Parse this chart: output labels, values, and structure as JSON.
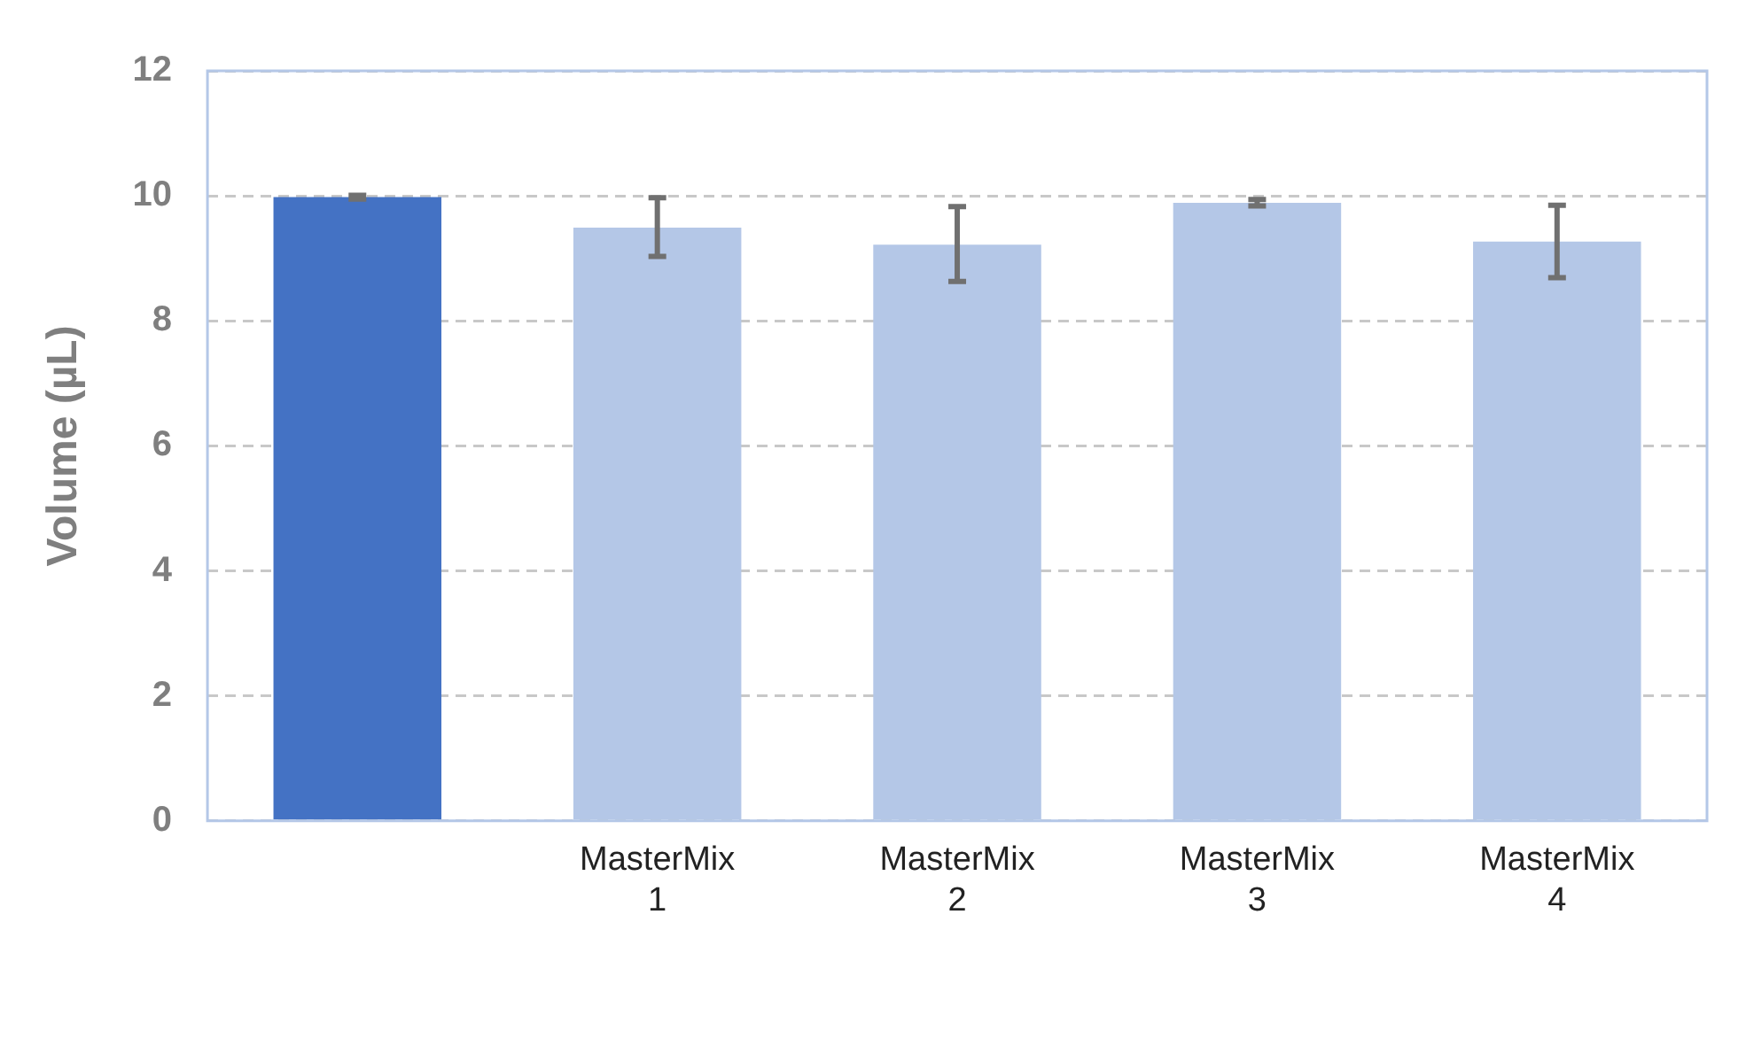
{
  "chart_data": {
    "type": "bar",
    "ylabel": "Volume (µL)",
    "categories": [
      null,
      "MasterMix 1",
      "MasterMix 2",
      "MasterMix 3",
      "MasterMix 4"
    ],
    "values": [
      9.98,
      9.49,
      9.22,
      9.89,
      9.27
    ],
    "colors": [
      "#4472c4",
      "#b4c7e7",
      "#b4c7e7",
      "#b4c7e7",
      "#b4c7e7"
    ],
    "errors": [
      0.03,
      [
        9.03,
        9.97
      ],
      [
        8.63,
        9.83
      ],
      0.05,
      [
        8.69,
        9.85
      ]
    ],
    "ylim": [
      0,
      12
    ],
    "yticks": [
      0,
      2,
      4,
      6,
      8,
      10,
      12
    ],
    "grid": "y"
  }
}
